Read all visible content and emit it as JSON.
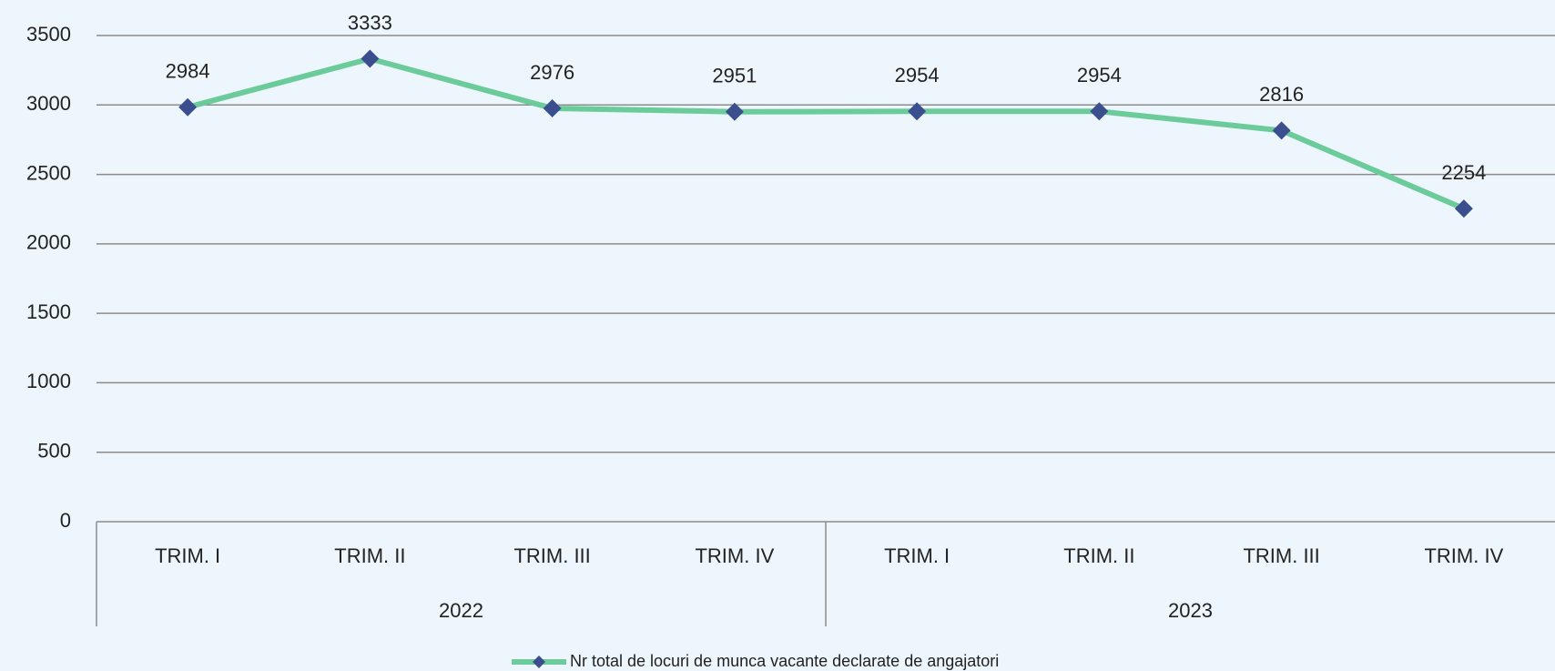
{
  "chart_data": {
    "type": "line",
    "groups": [
      {
        "name": "2022",
        "categories": [
          "TRIM. I",
          "TRIM. II",
          "TRIM. III",
          "TRIM. IV"
        ]
      },
      {
        "name": "2023",
        "categories": [
          "TRIM. I",
          "TRIM. II",
          "TRIM. III",
          "TRIM. IV"
        ]
      }
    ],
    "series": [
      {
        "name": "Nr total de locuri de munca vacante declarate de angajatori",
        "color": "#6ccb9b",
        "marker_color": "#3b4f8f",
        "values": [
          2984,
          3333,
          2976,
          2951,
          2954,
          2954,
          2816,
          2254
        ]
      }
    ],
    "ylim": [
      0,
      3500
    ],
    "yticks": [
      0,
      500,
      1000,
      1500,
      2000,
      2500,
      3000,
      3500
    ],
    "grid": true,
    "legend": "bottom"
  }
}
